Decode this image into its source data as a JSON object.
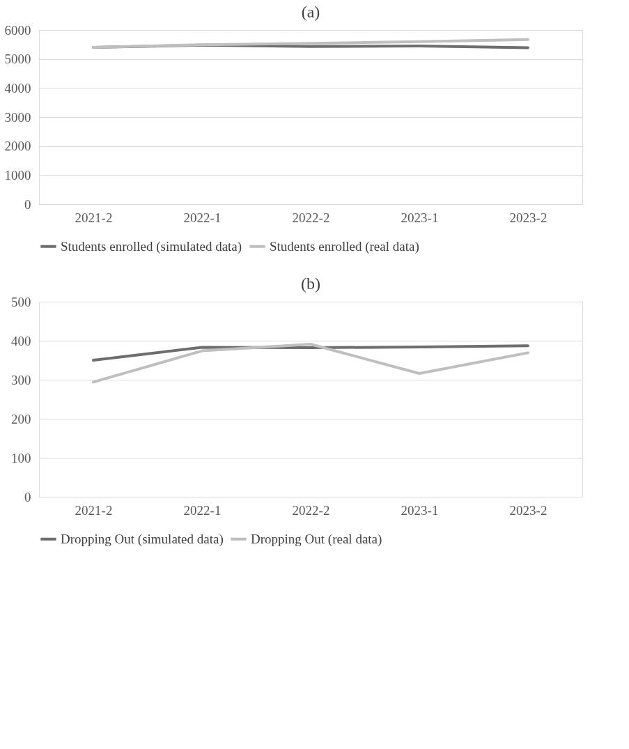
{
  "chart_data": [
    {
      "type": "line",
      "title": "(a)",
      "categories": [
        "2021-2",
        "2022-1",
        "2022-2",
        "2023-1",
        "2023-2"
      ],
      "ylim": [
        0,
        6000
      ],
      "yticks": [
        0,
        1000,
        2000,
        3000,
        4000,
        5000,
        6000
      ],
      "grid": "y",
      "legend": "bottom",
      "marker": "none",
      "line_style": "solid",
      "series": [
        {
          "name": "Students enrolled (simulated data)",
          "color": "#6e6e6e",
          "values": [
            5400,
            5480,
            5430,
            5450,
            5390
          ]
        },
        {
          "name": "Students enrolled (real data)",
          "color": "#bfbfbf",
          "values": [
            5400,
            5490,
            5540,
            5600,
            5670
          ]
        }
      ]
    },
    {
      "type": "line",
      "title": "(b)",
      "categories": [
        "2021-2",
        "2022-1",
        "2022-2",
        "2023-1",
        "2023-2"
      ],
      "ylim": [
        0,
        500
      ],
      "yticks": [
        0,
        100,
        200,
        300,
        400,
        500
      ],
      "grid": "y",
      "legend": "bottom",
      "marker": "none",
      "line_style": "solid",
      "series": [
        {
          "name": "Dropping Out (simulated data)",
          "color": "#6e6e6e",
          "values": [
            350,
            383,
            382,
            384,
            387
          ]
        },
        {
          "name": "Dropping Out (real data)",
          "color": "#bfbfbf",
          "values": [
            294,
            374,
            391,
            316,
            369
          ]
        }
      ]
    }
  ]
}
